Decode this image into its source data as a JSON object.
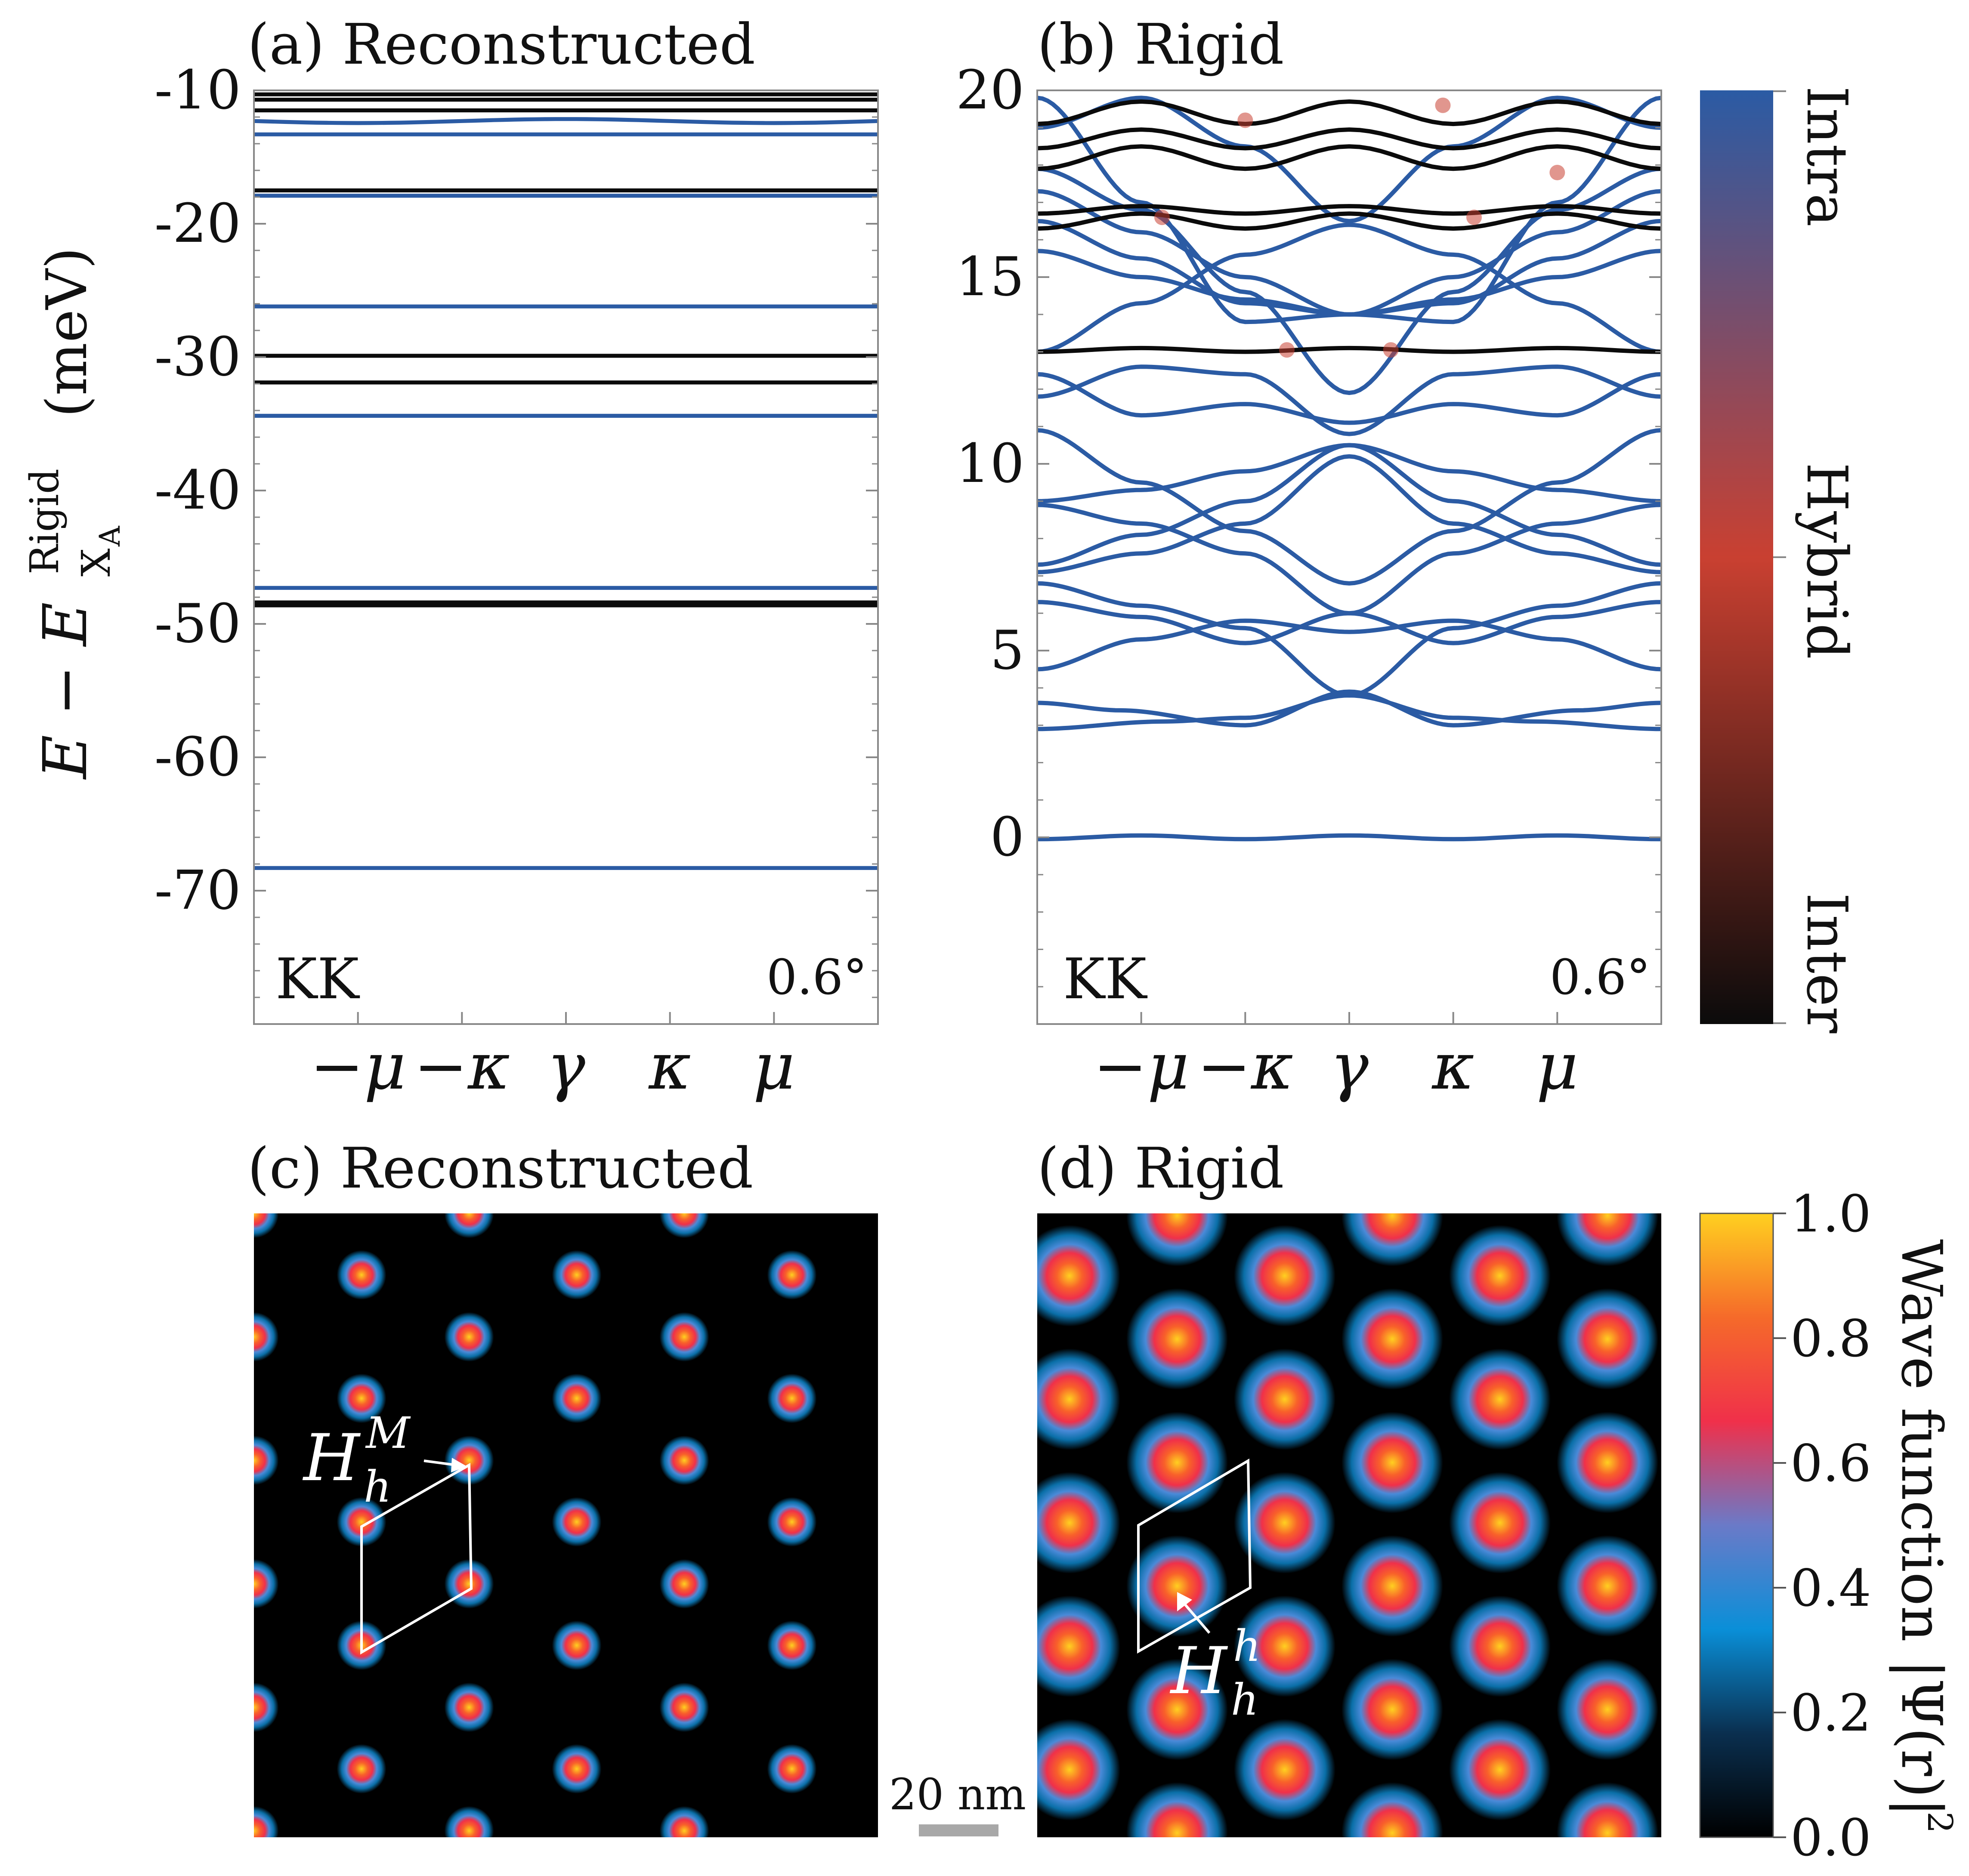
{
  "colors": {
    "intra": "#2b5ba4",
    "inter": "#0b0b0b",
    "hybrid": "#c94031",
    "frame": "#888888",
    "scalebar": "#a8a8a8"
  },
  "chart_data": [
    {
      "id": "a",
      "type": "line",
      "title": "(a) Reconstructed",
      "ylabel_main": "E − E",
      "ylabel_sup": "Rigid",
      "ylabel_sub": "X",
      "ylabel_sub2": "A",
      "ylabel_units": "(meV)",
      "ylim": [
        -80,
        -10
      ],
      "yticks": [
        -10,
        -20,
        -30,
        -40,
        -50,
        -60,
        -70
      ],
      "ytick_labels": [
        "-10",
        "-20",
        "-30",
        "-40",
        "-50",
        "-60",
        "-70"
      ],
      "xlim": [
        -1.5,
        1.5
      ],
      "xticks": [
        -1,
        -0.5,
        0,
        0.5,
        1
      ],
      "xtick_labels": [
        "−μ",
        "−κ",
        "γ",
        "κ",
        "μ"
      ],
      "inset_left": "KK",
      "inset_right": "0.6°",
      "series": [
        {
          "name": "inter",
          "level": -10.3,
          "amp": 0,
          "width": 4
        },
        {
          "name": "inter",
          "level": -10.7,
          "amp": 0,
          "width": 4
        },
        {
          "name": "inter",
          "level": -11.5,
          "amp": 0,
          "width": 4
        },
        {
          "name": "intra",
          "level": -12.3,
          "amp": 0.15,
          "width": 4
        },
        {
          "name": "intra",
          "level": -13.3,
          "amp": 0,
          "width": 4
        },
        {
          "name": "inter",
          "level": -17.5,
          "amp": 0,
          "width": 4
        },
        {
          "name": "intra",
          "level": -17.9,
          "amp": 0,
          "width": 4
        },
        {
          "name": "intra",
          "level": -26.2,
          "amp": 0,
          "width": 4
        },
        {
          "name": "inter",
          "level": -29.9,
          "amp": 0,
          "width": 4
        },
        {
          "name": "inter",
          "level": -31.9,
          "amp": 0,
          "width": 4
        },
        {
          "name": "intra",
          "level": -34.4,
          "amp": 0,
          "width": 4
        },
        {
          "name": "intra",
          "level": -47.3,
          "amp": 0,
          "width": 4
        },
        {
          "name": "inter",
          "level": -48.5,
          "amp": 0,
          "width": 7
        },
        {
          "name": "intra",
          "level": -68.3,
          "amp": 0,
          "width": 4
        }
      ]
    },
    {
      "id": "b",
      "type": "line",
      "title": "(b) Rigid",
      "ylim": [
        -5,
        20
      ],
      "yticks": [
        0,
        5,
        10,
        15,
        20
      ],
      "ytick_labels": [
        "0",
        "5",
        "10",
        "15",
        "20"
      ],
      "xlim": [
        -1.5,
        1.5
      ],
      "xticks": [
        -1,
        -0.5,
        0,
        0.5,
        1
      ],
      "xtick_labels": [
        "−μ",
        "−κ",
        "γ",
        "κ",
        "μ"
      ],
      "inset_left": "KK",
      "inset_right": "0.6°",
      "flat_series": [
        {
          "name": "intra",
          "level": 0.0,
          "amp": 0.05
        },
        {
          "name": "inter",
          "level": 13.05,
          "amp": 0.05
        },
        {
          "name": "inter",
          "level": 16.5,
          "amp": 0.2
        },
        {
          "name": "inter",
          "level": 16.8,
          "amp": 0.1
        },
        {
          "name": "inter",
          "level": 18.2,
          "amp": 0.3
        },
        {
          "name": "inter",
          "level": 18.7,
          "amp": 0.25
        },
        {
          "name": "inter",
          "level": 19.4,
          "amp": 0.3
        }
      ],
      "bands": [
        {
          "name": "intra",
          "x": [
            -1.5,
            -0.9,
            -0.5,
            0,
            0.5,
            0.9,
            1.5
          ],
          "y": [
            2.9,
            3.1,
            3.2,
            3.8,
            3.2,
            3.1,
            2.9
          ]
        },
        {
          "name": "intra",
          "x": [
            -1.5,
            -1.1,
            -0.5,
            0,
            0.5,
            1.1,
            1.5
          ],
          "y": [
            3.6,
            3.4,
            3.0,
            3.9,
            3.0,
            3.4,
            3.6
          ]
        },
        {
          "name": "intra",
          "x": [
            -1.5,
            -1.0,
            -0.5,
            0,
            0.5,
            1.0,
            1.5
          ],
          "y": [
            4.5,
            5.3,
            5.8,
            5.5,
            5.8,
            5.3,
            4.5
          ]
        },
        {
          "name": "intra",
          "x": [
            -1.5,
            -1.0,
            -0.5,
            0,
            0.5,
            1.0,
            1.5
          ],
          "y": [
            6.3,
            5.9,
            5.2,
            6.0,
            5.2,
            5.9,
            6.3
          ]
        },
        {
          "name": "intra",
          "x": [
            -1.5,
            -1.0,
            -0.5,
            0,
            0.5,
            1.0,
            1.5
          ],
          "y": [
            6.8,
            6.2,
            5.6,
            3.8,
            5.6,
            6.2,
            6.8
          ]
        },
        {
          "name": "intra",
          "x": [
            -1.5,
            -1.0,
            -0.5,
            0,
            0.5,
            1.0,
            1.5
          ],
          "y": [
            7.1,
            7.6,
            8.4,
            10.2,
            8.4,
            7.6,
            7.1
          ]
        },
        {
          "name": "intra",
          "x": [
            -1.5,
            -1.0,
            -0.5,
            0,
            0.5,
            1.0,
            1.5
          ],
          "y": [
            7.3,
            8.1,
            9.0,
            10.5,
            9.0,
            8.1,
            7.3
          ]
        },
        {
          "name": "intra",
          "x": [
            -1.5,
            -1.0,
            -0.5,
            0,
            0.5,
            1.0,
            1.5
          ],
          "y": [
            8.9,
            8.4,
            7.6,
            6.0,
            7.6,
            8.4,
            8.9
          ]
        },
        {
          "name": "intra",
          "x": [
            -1.5,
            -1.0,
            -0.5,
            0,
            0.5,
            1.0,
            1.5
          ],
          "y": [
            9.0,
            9.3,
            9.8,
            10.5,
            9.8,
            9.3,
            9.0
          ]
        },
        {
          "name": "intra",
          "x": [
            -1.5,
            -1.0,
            -0.5,
            0,
            0.5,
            1.0,
            1.5
          ],
          "y": [
            10.9,
            9.5,
            8.2,
            6.8,
            8.2,
            9.5,
            10.9
          ]
        },
        {
          "name": "intra",
          "x": [
            -1.5,
            -1.0,
            -0.5,
            0,
            0.5,
            1.0,
            1.5
          ],
          "y": [
            11.8,
            12.6,
            12.4,
            10.8,
            12.4,
            12.6,
            11.8
          ]
        },
        {
          "name": "intra",
          "x": [
            -1.5,
            -1.0,
            -0.5,
            0,
            0.5,
            1.0,
            1.5
          ],
          "y": [
            12.4,
            11.3,
            11.6,
            11.1,
            11.6,
            11.3,
            12.4
          ]
        },
        {
          "name": "intra",
          "x": [
            -1.5,
            -1.0,
            -0.5,
            0,
            0.5,
            1.0,
            1.5
          ],
          "y": [
            13.0,
            14.3,
            15.6,
            16.4,
            15.6,
            14.3,
            13.0
          ]
        },
        {
          "name": "intra",
          "x": [
            -1.5,
            -1.0,
            -0.5,
            0,
            0.5,
            1.0,
            1.5
          ],
          "y": [
            15.7,
            15.0,
            14.4,
            14.0,
            14.4,
            15.0,
            15.7
          ]
        },
        {
          "name": "intra",
          "x": [
            -1.5,
            -1.0,
            -0.5,
            0,
            0.5,
            1.0,
            1.5
          ],
          "y": [
            16.5,
            15.5,
            14.3,
            14.0,
            14.3,
            15.5,
            16.5
          ]
        },
        {
          "name": "intra",
          "x": [
            -1.5,
            -1.0,
            -0.5,
            0,
            0.5,
            1.0,
            1.5
          ],
          "y": [
            17.3,
            16.2,
            15.0,
            14.0,
            15.0,
            16.2,
            17.3
          ]
        },
        {
          "name": "intra",
          "x": [
            -1.5,
            -1.0,
            -0.5,
            0,
            0.5,
            1.0,
            1.5
          ],
          "y": [
            17.9,
            16.8,
            14.6,
            11.9,
            14.6,
            16.8,
            17.9
          ]
        },
        {
          "name": "intra",
          "x": [
            -1.5,
            -1.0,
            -0.5,
            0,
            0.5,
            1.0,
            1.5
          ],
          "y": [
            19.8,
            17.0,
            13.8,
            14.0,
            13.8,
            17.0,
            19.8
          ]
        },
        {
          "name": "intra",
          "x": [
            -1.5,
            -1.0,
            -0.5,
            0,
            0.5,
            1.0,
            1.5
          ],
          "y": [
            19.0,
            19.8,
            18.5,
            16.5,
            18.5,
            19.8,
            19.0
          ]
        }
      ]
    },
    {
      "id": "c",
      "type": "heatmap",
      "title": "(c) Reconstructed",
      "annotation_base": "H",
      "annotation_sub": "h",
      "annotation_sup": "M",
      "spot_scale": 0.5
    },
    {
      "id": "d",
      "type": "heatmap",
      "title": "(d) Rigid",
      "annotation_base": "H",
      "annotation_sub": "h",
      "annotation_sup": "h",
      "spot_scale": 1.0
    }
  ],
  "colorbar_top": {
    "labels": [
      "Intra",
      "Hybrid",
      "Inter"
    ],
    "stops": [
      "#2b5ba4",
      "#c94031",
      "#0b0b0b"
    ]
  },
  "colorbar_bottom": {
    "label": "Wave function |Ψ(r)|",
    "label_sup": "2",
    "ticks": [
      0.0,
      0.2,
      0.4,
      0.6,
      0.8,
      1.0
    ],
    "tick_labels": [
      "0.0",
      "0.2",
      "0.4",
      "0.6",
      "0.8",
      "1.0"
    ],
    "stops": [
      "#000000",
      "#0a2f4f",
      "#0a8fd8",
      "#6a7ac8",
      "#f0304a",
      "#f56a2a",
      "#ffd020"
    ]
  },
  "scalebar": {
    "label": "20 nm"
  }
}
